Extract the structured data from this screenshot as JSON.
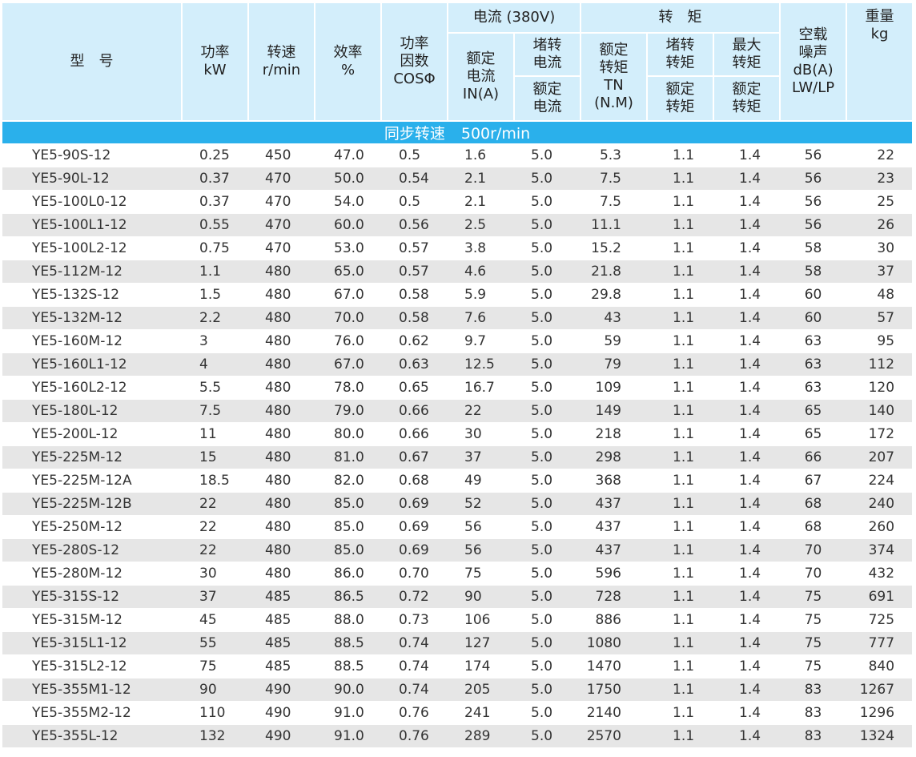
{
  "header": {
    "model": "型　号",
    "power": [
      "功率",
      "kW"
    ],
    "speed": [
      "转速",
      "r/min"
    ],
    "efficiency": [
      "效率",
      "%"
    ],
    "power_factor": [
      "功率",
      "因数",
      "COSΦ"
    ],
    "current_group": "电流 (380V)",
    "rated_current": [
      "额定",
      "电流",
      "IN(A)"
    ],
    "locked_current_top": [
      "堵转",
      "电流"
    ],
    "locked_current_bottom": [
      "额定",
      "电流"
    ],
    "torque_group": "转　矩",
    "rated_torque": [
      "额定",
      "转矩",
      "TN",
      "(N.M)"
    ],
    "locked_torque_top": [
      "堵转",
      "转矩"
    ],
    "locked_torque_bottom": [
      "额定",
      "转矩"
    ],
    "max_torque_top": [
      "最大",
      "转矩"
    ],
    "max_torque_bottom": [
      "额定",
      "转矩"
    ],
    "noise": [
      "空载",
      "噪声",
      "dB(A)",
      "LW/LP"
    ],
    "weight": [
      "重量",
      "kg"
    ]
  },
  "sync_speed": {
    "label": "同步转速",
    "value": "500r/min"
  },
  "rows": [
    [
      "YE5-90S-12",
      "0.25",
      "450",
      "47.0",
      "0.5",
      "1.6",
      "5.0",
      "5.3",
      "1.1",
      "1.4",
      "56",
      "22"
    ],
    [
      "YE5-90L-12",
      "0.37",
      "470",
      "50.0",
      "0.54",
      "2.1",
      "5.0",
      "7.5",
      "1.1",
      "1.4",
      "56",
      "23"
    ],
    [
      "YE5-100L0-12",
      "0.37",
      "470",
      "54.0",
      "0.5",
      "2.1",
      "5.0",
      "7.5",
      "1.1",
      "1.4",
      "56",
      "25"
    ],
    [
      "YE5-100L1-12",
      "0.55",
      "470",
      "60.0",
      "0.56",
      "2.5",
      "5.0",
      "11.1",
      "1.1",
      "1.4",
      "56",
      "26"
    ],
    [
      "YE5-100L2-12",
      "0.75",
      "470",
      "53.0",
      "0.57",
      "3.8",
      "5.0",
      "15.2",
      "1.1",
      "1.4",
      "58",
      "30"
    ],
    [
      "YE5-112M-12",
      "1.1",
      "480",
      "65.0",
      "0.57",
      "4.6",
      "5.0",
      "21.8",
      "1.1",
      "1.4",
      "58",
      "37"
    ],
    [
      "YE5-132S-12",
      "1.5",
      "480",
      "67.0",
      "0.58",
      "5.9",
      "5.0",
      "29.8",
      "1.1",
      "1.4",
      "60",
      "48"
    ],
    [
      "YE5-132M-12",
      "2.2",
      "480",
      "70.0",
      "0.58",
      "7.6",
      "5.0",
      "43",
      "1.1",
      "1.4",
      "60",
      "57"
    ],
    [
      "YE5-160M-12",
      "3",
      "480",
      "76.0",
      "0.62",
      "9.7",
      "5.0",
      "59",
      "1.1",
      "1.4",
      "63",
      "95"
    ],
    [
      "YE5-160L1-12",
      "4",
      "480",
      "67.0",
      "0.63",
      "12.5",
      "5.0",
      "79",
      "1.1",
      "1.4",
      "63",
      "112"
    ],
    [
      "YE5-160L2-12",
      "5.5",
      "480",
      "78.0",
      "0.65",
      "16.7",
      "5.0",
      "109",
      "1.1",
      "1.4",
      "63",
      "120"
    ],
    [
      "YE5-180L-12",
      "7.5",
      "480",
      "79.0",
      "0.66",
      "22",
      "5.0",
      "149",
      "1.1",
      "1.4",
      "65",
      "140"
    ],
    [
      "YE5-200L-12",
      "11",
      "480",
      "80.0",
      "0.66",
      "30",
      "5.0",
      "218",
      "1.1",
      "1.4",
      "65",
      "172"
    ],
    [
      "YE5-225M-12",
      "15",
      "480",
      "81.0",
      "0.67",
      "37",
      "5.0",
      "298",
      "1.1",
      "1.4",
      "66",
      "207"
    ],
    [
      "YE5-225M-12A",
      "18.5",
      "480",
      "82.0",
      "0.68",
      "49",
      "5.0",
      "368",
      "1.1",
      "1.4",
      "67",
      "224"
    ],
    [
      "YE5-225M-12B",
      "22",
      "480",
      "85.0",
      "0.69",
      "52",
      "5.0",
      "437",
      "1.1",
      "1.4",
      "68",
      "240"
    ],
    [
      "YE5-250M-12",
      "22",
      "480",
      "85.0",
      "0.69",
      "56",
      "5.0",
      "437",
      "1.1",
      "1.4",
      "68",
      "260"
    ],
    [
      "YE5-280S-12",
      "22",
      "480",
      "85.0",
      "0.69",
      "56",
      "5.0",
      "437",
      "1.1",
      "1.4",
      "70",
      "374"
    ],
    [
      "YE5-280M-12",
      "30",
      "480",
      "86.0",
      "0.70",
      "75",
      "5.0",
      "596",
      "1.1",
      "1.4",
      "70",
      "432"
    ],
    [
      "YE5-315S-12",
      "37",
      "485",
      "86.5",
      "0.72",
      "90",
      "5.0",
      "728",
      "1.1",
      "1.4",
      "75",
      "691"
    ],
    [
      "YE5-315M-12",
      "45",
      "485",
      "88.0",
      "0.73",
      "106",
      "5.0",
      "886",
      "1.1",
      "1.4",
      "75",
      "725"
    ],
    [
      "YE5-315L1-12",
      "55",
      "485",
      "88.5",
      "0.74",
      "127",
      "5.0",
      "1080",
      "1.1",
      "1.4",
      "75",
      "777"
    ],
    [
      "YE5-315L2-12",
      "75",
      "485",
      "88.5",
      "0.74",
      "174",
      "5.0",
      "1470",
      "1.1",
      "1.4",
      "75",
      "840"
    ],
    [
      "YE5-355M1-12",
      "90",
      "490",
      "90.0",
      "0.74",
      "205",
      "5.0",
      "1750",
      "1.1",
      "1.4",
      "83",
      "1267"
    ],
    [
      "YE5-355M2-12",
      "110",
      "490",
      "91.0",
      "0.76",
      "241",
      "5.0",
      "2140",
      "1.1",
      "1.4",
      "83",
      "1296"
    ],
    [
      "YE5-355L-12",
      "132",
      "490",
      "91.0",
      "0.76",
      "289",
      "5.0",
      "2570",
      "1.1",
      "1.4",
      "83",
      "1324"
    ]
  ]
}
